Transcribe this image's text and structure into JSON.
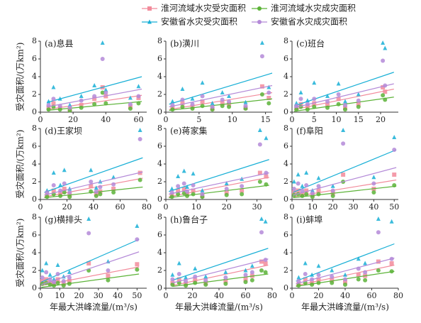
{
  "legend": [
    {
      "name": "淮河流域水灾受灾面积",
      "color": "#f28b9b",
      "marker": "square"
    },
    {
      "name": "淮河流域水灾成灾面积",
      "color": "#5cb338",
      "marker": "circle"
    },
    {
      "name": "安徽省水灾受灾面积",
      "color": "#17afd6",
      "marker": "triangle"
    },
    {
      "name": "安徽省水灾成灾面积",
      "color": "#b48ad8",
      "marker": "circle"
    }
  ],
  "chart_data": [
    {
      "type": "scatter",
      "title": "(a)息县",
      "ylabel": "受灾面积/(万km²)",
      "xlim": [
        0,
        65
      ],
      "xticks": [
        0,
        20,
        40,
        60
      ],
      "ylim": [
        0,
        8
      ],
      "yticks": [
        0,
        2,
        4,
        6,
        8
      ],
      "x": [
        5,
        8,
        12,
        18,
        25,
        33,
        38,
        40,
        55,
        60
      ],
      "fit_x": [
        4,
        62
      ],
      "series": [
        {
          "values": [
            0.5,
            1.0,
            0.5,
            0.3,
            0.8,
            1.5,
            2.8,
            1.8,
            0.6,
            1.6
          ],
          "fit": [
            0.3,
            1.9
          ]
        },
        {
          "values": [
            0.3,
            0.6,
            0.3,
            0.2,
            0.5,
            0.9,
            2.2,
            1.0,
            0.4,
            1.0
          ],
          "fit": [
            0.2,
            1.2
          ]
        },
        {
          "values": [
            1.2,
            2.8,
            1.5,
            0.8,
            1.8,
            3.0,
            7.8,
            2.5,
            1.6,
            2.9
          ],
          "fit": [
            1.1,
            4.0
          ]
        },
        {
          "values": [
            0.8,
            1.5,
            0.7,
            0.5,
            1.3,
            1.8,
            6.0,
            2.2,
            0.9,
            1.8
          ],
          "fit": [
            0.6,
            2.6
          ]
        }
      ]
    },
    {
      "type": "scatter",
      "title": "(b)潢川",
      "xlim": [
        0,
        16
      ],
      "xticks": [
        0,
        5,
        10,
        15
      ],
      "ylim": [
        0,
        8
      ],
      "yticks": [
        0,
        2,
        4,
        6,
        8
      ],
      "x": [
        1,
        2.5,
        4,
        5.5,
        7,
        8.5,
        9.5,
        12,
        14.5,
        15.5
      ],
      "fit_x": [
        0.5,
        16
      ],
      "series": [
        {
          "values": [
            0.5,
            1.0,
            0.6,
            1.2,
            0.4,
            1.0,
            0.9,
            0.5,
            2.9,
            1.6
          ],
          "fit": [
            0.3,
            2.2
          ]
        },
        {
          "values": [
            0.3,
            0.6,
            0.4,
            0.7,
            0.3,
            0.7,
            0.6,
            0.4,
            2.0,
            1.0
          ],
          "fit": [
            0.2,
            1.5
          ]
        },
        {
          "values": [
            1.2,
            2.6,
            1.5,
            3.3,
            1.0,
            2.2,
            1.8,
            1.1,
            7.8,
            2.8
          ],
          "fit": [
            0.9,
            4.4
          ]
        },
        {
          "values": [
            0.8,
            1.4,
            0.9,
            1.8,
            0.6,
            1.4,
            1.2,
            0.7,
            6.3,
            2.2
          ],
          "fit": [
            0.6,
            3.0
          ]
        }
      ]
    },
    {
      "type": "scatter",
      "title": "(c)班台",
      "xlim": [
        0,
        24
      ],
      "xticks": [
        0,
        5,
        10,
        15,
        20
      ],
      "ylim": [
        0,
        8
      ],
      "yticks": [
        0,
        2,
        4,
        6,
        8
      ],
      "x": [
        1,
        2,
        3.5,
        5,
        8,
        10.5,
        12,
        15,
        20.5,
        21
      ],
      "fit_x": [
        0.5,
        23
      ],
      "series": [
        {
          "values": [
            0.5,
            0.9,
            0.6,
            1.0,
            0.8,
            1.5,
            0.5,
            0.9,
            2.8,
            2.3
          ],
          "fit": [
            0.3,
            2.6
          ]
        },
        {
          "values": [
            0.3,
            0.6,
            0.3,
            0.6,
            0.5,
            0.9,
            0.3,
            0.6,
            1.9,
            1.4
          ],
          "fit": [
            0.1,
            1.7
          ]
        },
        {
          "values": [
            1.0,
            2.2,
            1.3,
            3.3,
            1.8,
            3.2,
            1.2,
            2.0,
            7.8,
            7.2
          ],
          "fit": [
            0.7,
            4.5
          ]
        },
        {
          "values": [
            0.7,
            1.5,
            0.9,
            1.5,
            1.2,
            2.0,
            0.8,
            1.3,
            5.8,
            3.0
          ],
          "fit": [
            0.5,
            3.2
          ]
        }
      ]
    },
    {
      "type": "scatter",
      "title": "(d)王家坝",
      "ylabel": "受灾面积/(万km²)",
      "xlim": [
        0,
        80
      ],
      "xticks": [
        0,
        20,
        40,
        60,
        80
      ],
      "ylim": [
        0,
        8
      ],
      "yticks": [
        0,
        2,
        4,
        6,
        8
      ],
      "x": [
        5,
        10,
        15,
        18,
        22,
        38,
        42,
        45,
        55,
        75
      ],
      "fit_x": [
        3,
        77
      ],
      "series": [
        {
          "values": [
            0.5,
            1.0,
            0.6,
            1.2,
            0.5,
            1.5,
            0.6,
            0.9,
            1.2,
            3.0
          ],
          "fit": [
            0.3,
            2.4
          ]
        },
        {
          "values": [
            0.3,
            0.6,
            0.4,
            0.8,
            0.3,
            0.9,
            0.4,
            0.6,
            0.8,
            2.2
          ],
          "fit": [
            0.2,
            1.4
          ]
        },
        {
          "values": [
            1.0,
            3.0,
            1.6,
            3.3,
            1.2,
            3.3,
            1.3,
            2.0,
            2.5,
            7.8
          ],
          "fit": [
            0.8,
            4.7
          ]
        },
        {
          "values": [
            0.8,
            1.6,
            1.0,
            1.8,
            0.8,
            2.0,
            0.9,
            1.4,
            1.7,
            6.8
          ],
          "fit": [
            0.5,
            3.1
          ]
        }
      ]
    },
    {
      "type": "scatter",
      "title": "(e)蒋家集",
      "xlim": [
        0,
        35
      ],
      "xticks": [
        0,
        10,
        20,
        30
      ],
      "ylim": [
        0,
        8
      ],
      "yticks": [
        0,
        2,
        4,
        6,
        8
      ],
      "x": [
        2,
        4,
        6,
        7,
        9,
        12,
        20,
        25,
        31,
        33
      ],
      "fit_x": [
        1,
        34
      ],
      "series": [
        {
          "values": [
            0.5,
            1.0,
            1.2,
            0.6,
            1.0,
            0.4,
            0.8,
            1.0,
            3.0,
            2.6
          ],
          "fit": [
            0.3,
            2.5
          ]
        },
        {
          "values": [
            0.3,
            0.6,
            0.7,
            0.4,
            0.6,
            0.3,
            0.5,
            0.6,
            2.0,
            1.7
          ],
          "fit": [
            0.2,
            1.6
          ]
        },
        {
          "values": [
            1.2,
            2.6,
            3.2,
            1.4,
            2.9,
            1.0,
            1.8,
            2.3,
            7.8,
            6.9
          ],
          "fit": [
            0.9,
            4.5
          ]
        },
        {
          "values": [
            0.8,
            1.5,
            1.8,
            0.9,
            1.6,
            0.6,
            1.2,
            1.5,
            6.2,
            3.0
          ],
          "fit": [
            0.6,
            3.0
          ]
        }
      ]
    },
    {
      "type": "scatter",
      "title": "(f)阜阳",
      "xlim": [
        0,
        52
      ],
      "xticks": [
        0,
        10,
        20,
        30,
        40,
        50
      ],
      "ylim": [
        0,
        8
      ],
      "yticks": [
        0,
        2,
        4,
        6,
        8
      ],
      "x": [
        1,
        3,
        5,
        7,
        10,
        13,
        20,
        25,
        40,
        50
      ],
      "fit_x": [
        0.5,
        51
      ],
      "series": [
        {
          "values": [
            0.8,
            1.0,
            0.6,
            1.0,
            0.5,
            1.0,
            0.7,
            2.8,
            1.2,
            2.8
          ],
          "fit": [
            0.3,
            2.2
          ]
        },
        {
          "values": [
            0.5,
            0.6,
            0.4,
            0.6,
            0.3,
            0.6,
            0.4,
            2.0,
            0.8,
            1.6
          ],
          "fit": [
            0.2,
            1.5
          ]
        },
        {
          "values": [
            2.0,
            2.8,
            1.5,
            3.0,
            1.0,
            2.4,
            1.5,
            7.8,
            2.5,
            7.0
          ],
          "fit": [
            0.8,
            5.6
          ]
        },
        {
          "values": [
            1.2,
            1.8,
            1.0,
            1.6,
            0.7,
            1.5,
            1.0,
            6.3,
            1.8,
            5.6
          ],
          "fit": [
            0.5,
            3.6
          ]
        }
      ]
    },
    {
      "type": "scatter",
      "title": "(g)横排头",
      "ylabel": "受灾面积/(万km²)",
      "xlabel": "年最大洪峰流量/(m³/s)",
      "xlim": [
        0,
        55
      ],
      "xticks": [
        0,
        10,
        20,
        30,
        40,
        50
      ],
      "ylim": [
        0,
        8
      ],
      "yticks": [
        0,
        2,
        4,
        6,
        8
      ],
      "x": [
        1,
        3,
        5,
        7,
        9,
        12,
        15,
        25,
        35,
        50
      ],
      "fit_x": [
        0.5,
        51
      ],
      "series": [
        {
          "values": [
            0.8,
            1.0,
            0.6,
            0.5,
            1.0,
            0.5,
            0.8,
            2.8,
            1.4,
            2.7
          ],
          "fit": [
            0.3,
            2.4
          ]
        },
        {
          "values": [
            0.5,
            0.6,
            0.4,
            0.3,
            0.6,
            0.3,
            0.5,
            2.0,
            0.9,
            2.1
          ],
          "fit": [
            0.1,
            1.6
          ]
        },
        {
          "values": [
            2.0,
            2.8,
            1.5,
            1.0,
            2.6,
            1.3,
            1.8,
            7.8,
            3.0,
            7.0
          ],
          "fit": [
            0.7,
            5.5
          ]
        },
        {
          "values": [
            1.2,
            1.8,
            1.0,
            0.7,
            1.6,
            0.8,
            1.2,
            6.2,
            2.0,
            5.5
          ],
          "fit": [
            0.4,
            4.1
          ]
        }
      ]
    },
    {
      "type": "scatter",
      "title": "(h)鲁台子",
      "xlabel": "年最大洪峰流量/(m³/s)",
      "xlim": [
        0,
        80
      ],
      "xticks": [
        0,
        20,
        40,
        60,
        80
      ],
      "ylim": [
        0,
        8
      ],
      "yticks": [
        0,
        2,
        4,
        6,
        8
      ],
      "x": [
        5,
        10,
        15,
        22,
        30,
        45,
        60,
        65,
        72,
        75
      ],
      "fit_x": [
        5,
        77
      ],
      "series": [
        {
          "values": [
            0.6,
            1.0,
            0.5,
            0.9,
            0.6,
            0.8,
            1.0,
            1.4,
            3.0,
            2.8
          ],
          "fit": [
            0.3,
            2.6
          ]
        },
        {
          "values": [
            0.4,
            0.6,
            0.3,
            0.6,
            0.4,
            0.5,
            0.7,
            0.9,
            2.0,
            1.8
          ],
          "fit": [
            0.2,
            1.6
          ]
        },
        {
          "values": [
            1.5,
            2.8,
            1.2,
            2.2,
            1.3,
            1.8,
            2.0,
            2.5,
            7.8,
            7.5
          ],
          "fit": [
            0.9,
            4.5
          ]
        },
        {
          "values": [
            1.0,
            1.6,
            0.8,
            1.3,
            0.9,
            1.2,
            1.5,
            1.8,
            6.3,
            3.2
          ],
          "fit": [
            0.6,
            3.3
          ]
        }
      ]
    },
    {
      "type": "scatter",
      "title": "(i)蚌埠",
      "xlabel": "年最大洪峰流量/(m³/s)",
      "xlim": [
        0,
        80
      ],
      "xticks": [
        0,
        20,
        40,
        60,
        80
      ],
      "ylim": [
        0,
        8
      ],
      "yticks": [
        0,
        2,
        4,
        6,
        8
      ],
      "x": [
        5,
        10,
        15,
        20,
        30,
        40,
        50,
        55,
        65,
        75
      ],
      "fit_x": [
        3,
        77
      ],
      "series": [
        {
          "values": [
            0.5,
            1.0,
            0.6,
            1.0,
            0.9,
            0.7,
            1.5,
            1.4,
            3.0,
            2.8
          ],
          "fit": [
            0.3,
            2.6
          ]
        },
        {
          "values": [
            0.3,
            0.6,
            0.4,
            0.6,
            0.6,
            0.4,
            1.0,
            0.9,
            2.0,
            1.9
          ],
          "fit": [
            0.2,
            1.9
          ]
        },
        {
          "values": [
            1.2,
            2.8,
            1.5,
            2.5,
            2.0,
            1.5,
            3.3,
            2.8,
            7.8,
            7.5
          ],
          "fit": [
            0.8,
            5.0
          ]
        },
        {
          "values": [
            0.8,
            1.6,
            1.0,
            1.5,
            1.3,
            1.0,
            2.2,
            1.8,
            6.3,
            3.3
          ],
          "fit": [
            0.5,
            3.4
          ]
        }
      ]
    }
  ]
}
